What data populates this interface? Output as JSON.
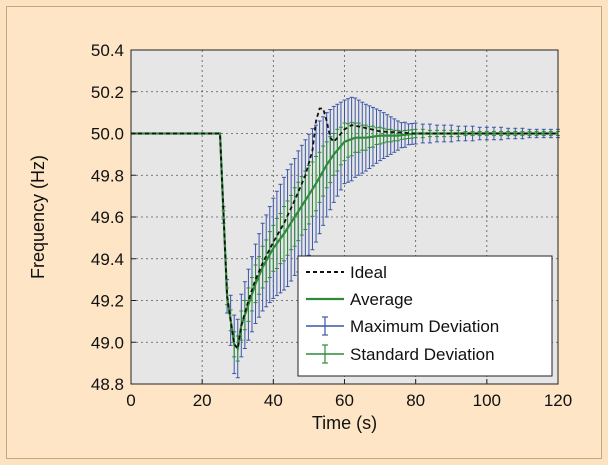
{
  "chart_data": {
    "type": "line",
    "xlabel": "Time (s)",
    "ylabel": "Frequency (Hz)",
    "xlim": [
      0,
      120
    ],
    "ylim": [
      48.8,
      50.4
    ],
    "xticks": [
      "0",
      "20",
      "40",
      "60",
      "80",
      "100",
      "120"
    ],
    "yticks": [
      "48.8",
      "49.0",
      "49.2",
      "49.4",
      "49.6",
      "49.8",
      "50.0",
      "50.2",
      "50.4"
    ],
    "grid": true,
    "legend_position": "bottom-right",
    "legend": {
      "ideal": "Ideal",
      "average": "Average",
      "max_dev": "Maximum Deviation",
      "std_dev": "Standard Deviation"
    },
    "colors": {
      "ideal": "#111111",
      "average": "#2e8b3a",
      "max_dev": "#3b56a8",
      "std_dev": "#2e8b3a",
      "plot_bg": "#e6e6e6",
      "page_bg": "#fbe3c2"
    },
    "series": [
      {
        "name": "Ideal",
        "style": "dashed",
        "x": [
          0,
          25,
          27,
          29,
          30,
          31,
          33,
          35,
          37,
          40,
          43,
          46,
          49,
          51,
          52,
          53,
          54,
          55,
          56,
          57,
          58,
          60,
          62,
          65,
          70,
          80,
          90,
          100,
          110,
          120
        ],
        "y": [
          50.0,
          50.0,
          49.22,
          48.99,
          48.97,
          49.08,
          49.2,
          49.3,
          49.38,
          49.48,
          49.57,
          49.68,
          49.8,
          49.92,
          50.06,
          50.12,
          50.12,
          50.06,
          49.98,
          49.96,
          49.98,
          50.02,
          50.04,
          50.03,
          50.01,
          50.0,
          50.0,
          50.0,
          50.0,
          50.0
        ]
      },
      {
        "name": "Average",
        "style": "solid",
        "x": [
          0,
          25,
          27,
          29,
          30,
          31,
          33,
          35,
          37,
          40,
          43,
          46,
          49,
          52,
          55,
          57,
          60,
          63,
          66,
          70,
          75,
          80,
          90,
          100,
          110,
          120
        ],
        "y": [
          50.0,
          50.0,
          49.22,
          48.99,
          48.97,
          49.08,
          49.18,
          49.28,
          49.36,
          49.45,
          49.52,
          49.6,
          49.68,
          49.76,
          49.85,
          49.9,
          49.96,
          49.98,
          49.98,
          49.99,
          49.99,
          50.0,
          50.0,
          50.0,
          50.0,
          50.0
        ]
      }
    ],
    "error_bars": {
      "x": [
        25,
        26,
        27,
        28,
        29,
        30,
        31,
        32,
        33,
        34,
        35,
        36,
        37,
        38,
        39,
        40,
        41,
        42,
        43,
        44,
        45,
        46,
        47,
        48,
        49,
        50,
        51,
        52,
        53,
        54,
        55,
        56,
        57,
        58,
        59,
        60,
        61,
        62,
        63,
        64,
        65,
        66,
        67,
        68,
        69,
        70,
        71,
        72,
        73,
        74,
        75,
        76,
        77,
        78,
        79,
        80,
        82,
        84,
        86,
        88,
        90,
        92,
        94,
        96,
        98,
        100,
        102,
        104,
        106,
        108,
        110,
        112,
        114,
        116,
        118,
        120
      ],
      "max_dev_half_width": [
        0,
        0.04,
        0.08,
        0.12,
        0.14,
        0.14,
        0.15,
        0.16,
        0.17,
        0.18,
        0.19,
        0.2,
        0.21,
        0.22,
        0.23,
        0.24,
        0.25,
        0.26,
        0.27,
        0.28,
        0.28,
        0.28,
        0.29,
        0.29,
        0.29,
        0.29,
        0.29,
        0.28,
        0.27,
        0.26,
        0.25,
        0.24,
        0.23,
        0.22,
        0.21,
        0.2,
        0.2,
        0.2,
        0.19,
        0.18,
        0.17,
        0.16,
        0.15,
        0.14,
        0.13,
        0.12,
        0.11,
        0.1,
        0.09,
        0.08,
        0.07,
        0.06,
        0.06,
        0.05,
        0.05,
        0.05,
        0.045,
        0.045,
        0.04,
        0.04,
        0.04,
        0.035,
        0.035,
        0.035,
        0.03,
        0.03,
        0.03,
        0.03,
        0.025,
        0.025,
        0.025,
        0.02,
        0.02,
        0.02,
        0.02,
        0.02
      ],
      "std_dev_half_width": [
        0,
        0.02,
        0.04,
        0.05,
        0.06,
        0.06,
        0.07,
        0.07,
        0.08,
        0.08,
        0.09,
        0.09,
        0.1,
        0.1,
        0.11,
        0.11,
        0.12,
        0.12,
        0.13,
        0.13,
        0.13,
        0.14,
        0.14,
        0.14,
        0.14,
        0.14,
        0.13,
        0.13,
        0.12,
        0.12,
        0.11,
        0.11,
        0.1,
        0.1,
        0.09,
        0.09,
        0.08,
        0.08,
        0.07,
        0.07,
        0.06,
        0.06,
        0.05,
        0.05,
        0.04,
        0.04,
        0.035,
        0.03,
        0.03,
        0.025,
        0.025,
        0.02,
        0.02,
        0.02,
        0.02,
        0.02,
        0.02,
        0.015,
        0.015,
        0.015,
        0.015,
        0.015,
        0.01,
        0.01,
        0.01,
        0.01,
        0.01,
        0.01,
        0.01,
        0.01,
        0.01,
        0.01,
        0.01,
        0.01,
        0.01,
        0.01
      ]
    }
  }
}
